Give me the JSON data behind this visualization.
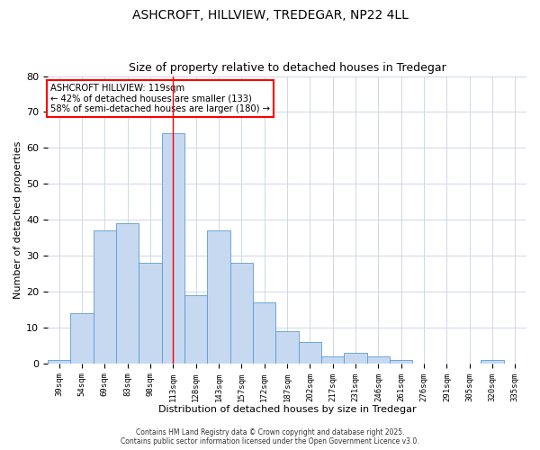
{
  "title": "ASHCROFT, HILLVIEW, TREDEGAR, NP22 4LL",
  "subtitle": "Size of property relative to detached houses in Tredegar",
  "xlabel": "Distribution of detached houses by size in Tredegar",
  "ylabel": "Number of detached properties",
  "footer_line1": "Contains HM Land Registry data © Crown copyright and database right 2025.",
  "footer_line2": "Contains public sector information licensed under the Open Government Licence v3.0.",
  "annotation_line1": "ASHCROFT HILLVIEW: 119sqm",
  "annotation_line2": "← 42% of detached houses are smaller (133)",
  "annotation_line3": "58% of semi-detached houses are larger (180) →",
  "bar_labels": [
    "39sqm",
    "54sqm",
    "69sqm",
    "83sqm",
    "98sqm",
    "113sqm",
    "128sqm",
    "143sqm",
    "157sqm",
    "172sqm",
    "187sqm",
    "202sqm",
    "217sqm",
    "231sqm",
    "246sqm",
    "261sqm",
    "276sqm",
    "291sqm",
    "305sqm",
    "320sqm",
    "335sqm"
  ],
  "bar_values": [
    1,
    14,
    37,
    39,
    28,
    64,
    19,
    37,
    28,
    17,
    9,
    6,
    2,
    3,
    2,
    1,
    0,
    0,
    0,
    1,
    0
  ],
  "bar_color": "#c6d9f1",
  "bar_edge_color": "#5b9bd5",
  "grid_color": "#d0d8e8",
  "background_color": "#ffffff",
  "red_line_bar_index": 5,
  "ylim": [
    0,
    80
  ],
  "yticks": [
    0,
    10,
    20,
    30,
    40,
    50,
    60,
    70,
    80
  ]
}
